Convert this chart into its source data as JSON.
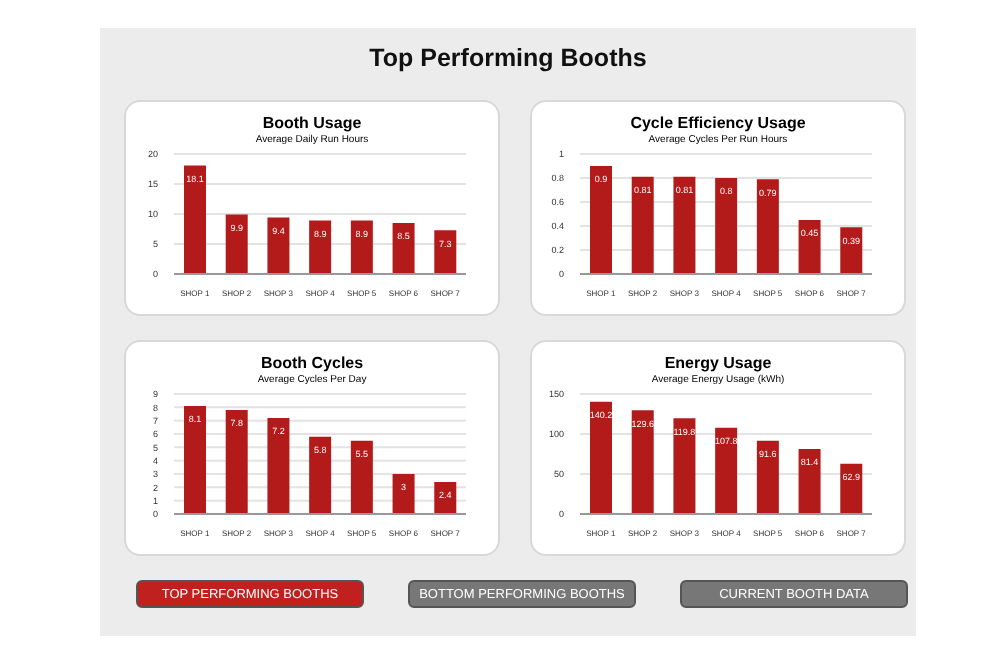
{
  "chart_data": [
    {
      "type": "other",
      "title": "Top Performing Booths"
    },
    {
      "type": "bar",
      "title": "Booth Usage",
      "subtitle": "Average Daily Run Hours",
      "categories": [
        "SHOP 1",
        "SHOP 2",
        "SHOP 3",
        "SHOP 4",
        "SHOP 5",
        "SHOP 6",
        "SHOP 7"
      ],
      "values": [
        18.1,
        9.9,
        9.4,
        8.9,
        8.9,
        8.5,
        7.3
      ],
      "color": "#b31b1b",
      "ylim": [
        0,
        20
      ],
      "yticks": [
        0,
        5,
        10,
        15,
        20
      ],
      "grid": "y",
      "data_labels": true
    },
    {
      "type": "bar",
      "title": "Cycle Efficiency Usage",
      "subtitle": "Average Cycles Per Run Hours",
      "categories": [
        "SHOP 1",
        "SHOP 2",
        "SHOP 3",
        "SHOP 4",
        "SHOP 5",
        "SHOP 6",
        "SHOP 7"
      ],
      "values": [
        0.9,
        0.81,
        0.81,
        0.8,
        0.79,
        0.45,
        0.39
      ],
      "color": "#b31b1b",
      "ylim": [
        0,
        1
      ],
      "yticks": [
        0,
        0.2,
        0.4,
        0.6,
        0.8,
        1.0
      ],
      "grid": "y",
      "data_labels": true
    },
    {
      "type": "bar",
      "title": "Booth Cycles",
      "subtitle": "Average Cycles Per Day",
      "categories": [
        "SHOP 1",
        "SHOP 2",
        "SHOP 3",
        "SHOP 4",
        "SHOP 5",
        "SHOP 6",
        "SHOP 7"
      ],
      "values": [
        8.1,
        7.8,
        7.2,
        5.8,
        5.5,
        3,
        2.4
      ],
      "color": "#b31b1b",
      "ylim": [
        0,
        9
      ],
      "yticks": [
        0,
        1,
        2,
        3,
        4,
        5,
        6,
        7,
        8,
        9
      ],
      "grid": "y",
      "data_labels": true
    },
    {
      "type": "bar",
      "title": "Energy Usage",
      "subtitle": "Average Energy Usage (kWh)",
      "categories": [
        "SHOP 1",
        "SHOP 2",
        "SHOP 3",
        "SHOP 4",
        "SHOP 5",
        "SHOP 6",
        "SHOP 7"
      ],
      "values": [
        140.2,
        129.6,
        119.8,
        107.8,
        91.6,
        81.4,
        62.9
      ],
      "color": "#b31b1b",
      "ylim": [
        0,
        150
      ],
      "yticks": [
        0,
        50,
        100,
        150
      ],
      "grid": "y",
      "data_labels": true
    },
    {
      "type": "other",
      "annotations": [
        "TOP PERFORMING BOOTHS",
        "BOTTOM PERFORMING BOOTHS",
        "CURRENT BOOTH DATA"
      ]
    }
  ]
}
